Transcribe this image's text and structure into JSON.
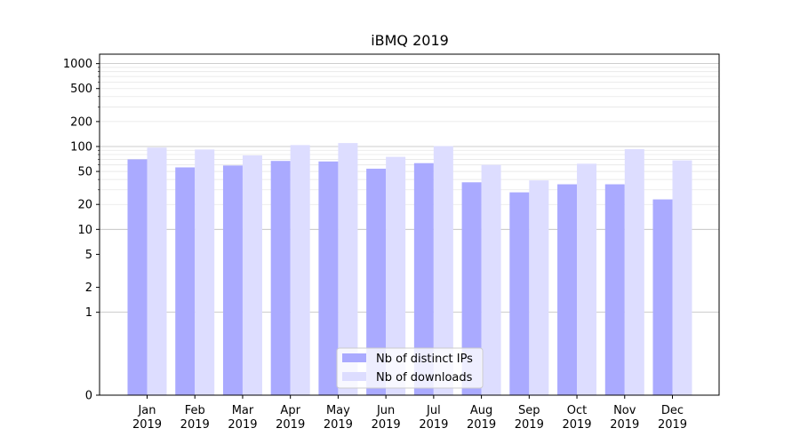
{
  "chart_data": {
    "type": "bar",
    "title": "iBMQ 2019",
    "xlabel": "",
    "ylabel": "",
    "y_scale": "symlog",
    "ylim": [
      0,
      1300
    ],
    "y_ticks": [
      0,
      1,
      2,
      5,
      10,
      20,
      50,
      100,
      200,
      500,
      1000
    ],
    "grid": true,
    "legend_position": "bottom-center",
    "categories": [
      [
        "Jan",
        "2019"
      ],
      [
        "Feb",
        "2019"
      ],
      [
        "Mar",
        "2019"
      ],
      [
        "Apr",
        "2019"
      ],
      [
        "May",
        "2019"
      ],
      [
        "Jun",
        "2019"
      ],
      [
        "Jul",
        "2019"
      ],
      [
        "Aug",
        "2019"
      ],
      [
        "Sep",
        "2019"
      ],
      [
        "Oct",
        "2019"
      ],
      [
        "Nov",
        "2019"
      ],
      [
        "Dec",
        "2019"
      ]
    ],
    "series": [
      {
        "name": "Nb of distinct IPs",
        "color": "#aaaaff",
        "values": [
          70,
          56,
          59,
          67,
          66,
          54,
          63,
          37,
          28,
          35,
          35,
          23
        ]
      },
      {
        "name": "Nb of downloads",
        "color": "#ddddff",
        "values": [
          97,
          92,
          78,
          104,
          110,
          75,
          101,
          60,
          39,
          62,
          93,
          68
        ]
      }
    ]
  }
}
